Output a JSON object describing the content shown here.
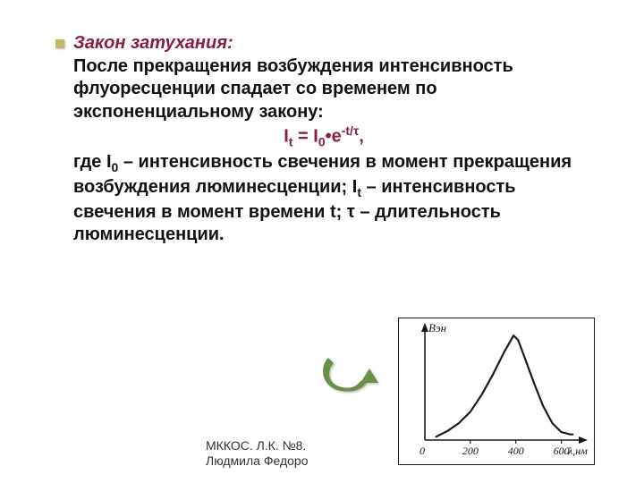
{
  "text": {
    "title": "Закон затухания:",
    "para1a": "После прекращения возбуждения интенсивность флуоресценции спадает со временем по экспоненциальному закону:",
    "formula_lhs": "I",
    "formula_sub1": "t",
    "formula_eq": " = I",
    "formula_sub2": "0",
    "formula_dot": "•e",
    "formula_exp": "-t/τ",
    "formula_comma": ",",
    "para2a": "где I",
    "para2b": " – интенсивность свечения в момент прекращения возбуждения люминесценции; I",
    "para2c": " – интенсивность свечения в момент времени t; τ – длительность люминесценции.",
    "sub0": "0",
    "subt": "t"
  },
  "chart": {
    "type": "line",
    "ylabel": "Bэн",
    "xlabel": "λ,нм",
    "xlim": [
      0,
      700
    ],
    "ylim": [
      0,
      100
    ],
    "xticks": [
      0,
      200,
      400,
      600
    ],
    "xtick_labels": [
      "0",
      "200",
      "400",
      "600"
    ],
    "points": [
      [
        50,
        3
      ],
      [
        100,
        8
      ],
      [
        150,
        15
      ],
      [
        200,
        25
      ],
      [
        250,
        40
      ],
      [
        300,
        58
      ],
      [
        350,
        78
      ],
      [
        390,
        92
      ],
      [
        410,
        88
      ],
      [
        440,
        72
      ],
      [
        480,
        50
      ],
      [
        520,
        30
      ],
      [
        560,
        15
      ],
      [
        600,
        7
      ],
      [
        640,
        5
      ],
      [
        650,
        5
      ]
    ],
    "line_color": "#1a1a1a",
    "line_width": 2.2,
    "axis_color": "#1a1a1a",
    "background_color": "#ffffff",
    "label_color": "#1a1a1a",
    "label_fontsize": 13,
    "tick_fontsize": 12
  },
  "arrow": {
    "color": "#6b8f4a",
    "shadow": "rgba(0,0,0,0.25)"
  },
  "footer": {
    "line1": "МККОС. Л.К. №8.",
    "line2": "Людмила Федоро"
  }
}
